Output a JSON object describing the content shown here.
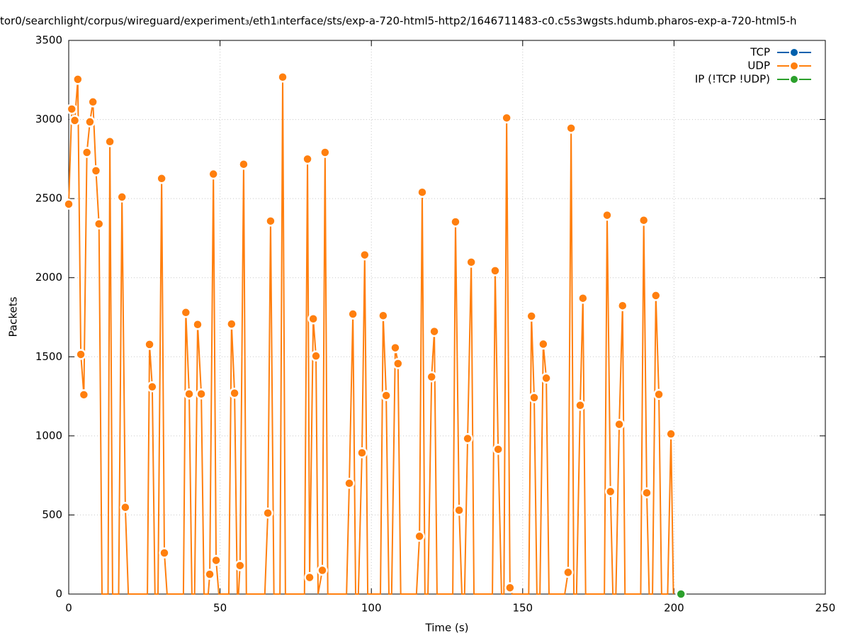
{
  "chart_data": {
    "type": "line",
    "title": "tor0/searchlight/corpus/wireguard/experiment₃/eth1ᵢnterface/sts/exp-a-720-html5-http2/1646711483-c0.c5s3wgsts.hdumb.pharos-exp-a-720-html5-h",
    "xlabel": "Time (s)",
    "ylabel": "Packets",
    "xlim": [
      0,
      250
    ],
    "xticks": [
      0,
      50,
      100,
      150,
      200,
      250
    ],
    "ylim": [
      0,
      3500
    ],
    "yticks": [
      0,
      500,
      1000,
      1500,
      2000,
      2500,
      3000,
      3500
    ],
    "grid": true,
    "legend": "top-right",
    "series": [
      {
        "name": "TCP",
        "color": "#0060ad",
        "x": [],
        "values": []
      },
      {
        "name": "UDP",
        "color": "#ff7f0e",
        "x": [
          0,
          1,
          2,
          3,
          4,
          5,
          6,
          7,
          8,
          9,
          10,
          11,
          13,
          13.6,
          14.5,
          16.5,
          17.6,
          18.7,
          19.7,
          26,
          26.7,
          27.6,
          28.5,
          29.5,
          30.7,
          31.6,
          32.5,
          37.9,
          38.7,
          39.8,
          40.7,
          41.6,
          42.6,
          43.8,
          44.7,
          46.1,
          46.6,
          47.8,
          48.7,
          49.6,
          52.9,
          53.8,
          54.8,
          55.7,
          56.1,
          56.6,
          57.8,
          58.7,
          64.8,
          65.8,
          66.7,
          67.8,
          69.8,
          70.7,
          71.6,
          77.9,
          78.9,
          79.6,
          80.8,
          81.7,
          82.4,
          83.8,
          84.7,
          85.6,
          91.8,
          92.7,
          93.9,
          94.8,
          95.7,
          96.9,
          97.8,
          98.8,
          103,
          103.9,
          104.9,
          105.8,
          106.7,
          107.9,
          108.8,
          109.7,
          114.9,
          115.9,
          116.8,
          117.7,
          118.7,
          119.9,
          120.8,
          121.7,
          126.9,
          127.8,
          129,
          129.9,
          130.8,
          131.8,
          133,
          133.9,
          140,
          140.9,
          141.9,
          143,
          143.8,
          144.7,
          145.8,
          146.5,
          152,
          152.9,
          153.8,
          154.7,
          155.7,
          156.8,
          157.8,
          158.7,
          163.9,
          165,
          166,
          166.9,
          167.8,
          169,
          169.9,
          170.8,
          177,
          177.9,
          179,
          179.8,
          180.8,
          181.9,
          183,
          183.8,
          189,
          190,
          191,
          191.8,
          192.9,
          194,
          195,
          195.9,
          197.9,
          199,
          199.8
        ],
        "values": [
          2465,
          3066,
          2994,
          3254,
          1515,
          1260,
          2792,
          2985,
          3111,
          2676,
          2340,
          0,
          0,
          2860,
          0,
          0,
          2510,
          548,
          0,
          0,
          1578,
          1310,
          0,
          0,
          2627,
          260,
          0,
          0,
          1780,
          1265,
          0,
          0,
          1704,
          1265,
          0,
          0,
          125,
          2655,
          213,
          0,
          0,
          1707,
          1270,
          0,
          0,
          180,
          2717,
          0,
          0,
          512,
          2358,
          0,
          0,
          3268,
          0,
          0,
          2750,
          105,
          1740,
          1505,
          0,
          150,
          2792,
          0,
          0,
          700,
          1770,
          0,
          0,
          893,
          2144,
          0,
          0,
          1760,
          1255,
          0,
          0,
          1557,
          1457,
          0,
          0,
          365,
          2540,
          0,
          0,
          1373,
          1660,
          0,
          0,
          2353,
          530,
          0,
          0,
          983,
          2098,
          0,
          0,
          2044,
          915,
          0,
          0,
          3010,
          40,
          0,
          0,
          1757,
          1242,
          0,
          0,
          1580,
          1365,
          0,
          0,
          137,
          2945,
          0,
          0,
          1193,
          1870,
          0,
          0,
          2395,
          648,
          0,
          0,
          1073,
          1823,
          0,
          0,
          2363,
          640,
          0,
          0,
          1887,
          1262,
          0,
          0,
          1012,
          0
        ]
      },
      {
        "name": "IP (!TCP  !UDP)",
        "color": "#2ca02c",
        "x": [
          202.3
        ],
        "values": [
          0
        ]
      }
    ]
  }
}
